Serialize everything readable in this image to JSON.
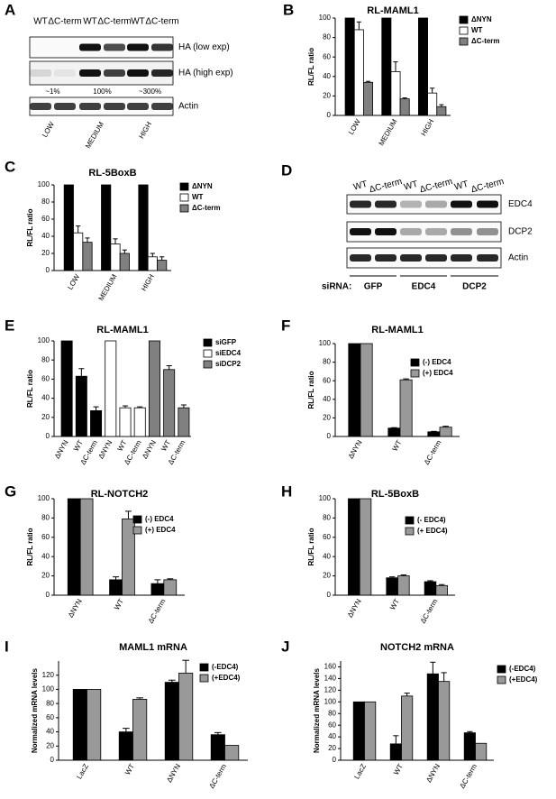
{
  "blots": [
    {
      "panel": "A",
      "lanes": [
        "WT",
        "ΔC-term",
        "WT",
        "ΔC-term",
        "WT",
        "ΔC-term"
      ],
      "rows": [
        "HA (low exp)",
        "HA (high exp)",
        "Actin"
      ],
      "levels": [
        "~1%",
        "100%",
        "~300%"
      ],
      "groups": [
        "LOW",
        "MEDIUM",
        "HIGH"
      ]
    },
    {
      "panel": "D",
      "lanes": [
        "WT",
        "ΔC-term",
        "WT",
        "ΔC-term",
        "WT",
        "ΔC-term"
      ],
      "rows": [
        "EDC4",
        "DCP2",
        "Actin"
      ],
      "sirna_label": "siRNA:",
      "groups": [
        "GFP",
        "EDC4",
        "DCP2"
      ]
    }
  ],
  "chart_data": [
    {
      "panel": "B",
      "type": "bar",
      "title": "RL-MAML1",
      "ylabel": "RL/FL ratio",
      "categories": [
        "LOW",
        "MEDIUM",
        "HIGH"
      ],
      "ylim": [
        0,
        100
      ],
      "yticks": [
        0,
        20,
        40,
        60,
        80,
        100
      ],
      "series": [
        {
          "name": "ΔNYN",
          "color": "#000000",
          "values": [
            100,
            100,
            100
          ]
        },
        {
          "name": "WT",
          "color": "#ffffff",
          "values": [
            88,
            45,
            23
          ],
          "errors": [
            8,
            10,
            5
          ]
        },
        {
          "name": "ΔC-term",
          "color": "#808080",
          "values": [
            34,
            17,
            9
          ],
          "errors": [
            1,
            1,
            2
          ]
        }
      ]
    },
    {
      "panel": "C",
      "type": "bar",
      "title": "RL-5BoxB",
      "ylabel": "RL/FL ratio",
      "categories": [
        "LOW",
        "MEDIUM",
        "HIGH"
      ],
      "ylim": [
        0,
        100
      ],
      "yticks": [
        0,
        20,
        40,
        60,
        80,
        100
      ],
      "series": [
        {
          "name": "ΔNYN",
          "color": "#000000",
          "values": [
            100,
            100,
            100
          ]
        },
        {
          "name": "WT",
          "color": "#ffffff",
          "values": [
            44,
            31,
            16
          ],
          "errors": [
            8,
            6,
            4
          ]
        },
        {
          "name": "ΔC-term",
          "color": "#808080",
          "values": [
            33,
            20,
            12
          ],
          "errors": [
            5,
            4,
            4
          ]
        }
      ]
    },
    {
      "panel": "E",
      "type": "bar",
      "title": "RL-MAML1",
      "ylabel": "RL/FL ratio",
      "categories": [
        "ΔNYN",
        "WT",
        "ΔC-term",
        "ΔNYN",
        "WT",
        "ΔC-term",
        "ΔNYN",
        "WT",
        "ΔC-term"
      ],
      "ylim": [
        0,
        100
      ],
      "yticks": [
        0,
        20,
        40,
        60,
        80,
        100
      ],
      "series": [
        {
          "name": "siGFP",
          "color": "#000000",
          "values": [
            100,
            63,
            27,
            null,
            null,
            null,
            null,
            null,
            null
          ],
          "errors": [
            null,
            8,
            4,
            null,
            null,
            null,
            null,
            null,
            null
          ]
        },
        {
          "name": "siEDC4",
          "color": "#ffffff",
          "values": [
            null,
            null,
            null,
            100,
            30,
            30,
            null,
            null,
            null
          ],
          "errors": [
            null,
            null,
            null,
            null,
            2,
            1,
            null,
            null,
            null
          ]
        },
        {
          "name": "siDCP2",
          "color": "#808080",
          "values": [
            null,
            null,
            null,
            null,
            null,
            null,
            100,
            70,
            30
          ],
          "errors": [
            null,
            null,
            null,
            null,
            null,
            null,
            null,
            4,
            3
          ]
        }
      ]
    },
    {
      "panel": "F",
      "type": "bar",
      "title": "RL-MAML1",
      "ylabel": "RL/FL ratio",
      "categories": [
        "ΔNYN",
        "WT",
        "ΔC-term"
      ],
      "ylim": [
        0,
        100
      ],
      "yticks": [
        0,
        20,
        40,
        60,
        80,
        100
      ],
      "series": [
        {
          "name": "(-) EDC4",
          "color": "#000000",
          "values": [
            100,
            9,
            5
          ],
          "errors": [
            null,
            0.5,
            0.5
          ]
        },
        {
          "name": "(+) EDC4",
          "color": "#999999",
          "values": [
            100,
            61,
            10
          ],
          "errors": [
            null,
            1,
            1
          ]
        }
      ]
    },
    {
      "panel": "G",
      "type": "bar",
      "title": "RL-NOTCH2",
      "ylabel": "RL/FL ratio",
      "categories": [
        "ΔNYN",
        "WT",
        "ΔC-term"
      ],
      "ylim": [
        0,
        100
      ],
      "yticks": [
        0,
        20,
        40,
        60,
        80,
        100
      ],
      "series": [
        {
          "name": "(-) EDC4",
          "color": "#000000",
          "values": [
            100,
            16,
            12
          ],
          "errors": [
            null,
            3,
            4
          ]
        },
        {
          "name": "(+) EDC4",
          "color": "#999999",
          "values": [
            100,
            79,
            16
          ],
          "errors": [
            null,
            8,
            1
          ]
        }
      ]
    },
    {
      "panel": "H",
      "type": "bar",
      "title": "RL-5BoxB",
      "ylabel": "RL/FL ratio",
      "categories": [
        "ΔNYN",
        "WT",
        "ΔC-term"
      ],
      "ylim": [
        0,
        100
      ],
      "yticks": [
        0,
        20,
        40,
        60,
        80,
        100
      ],
      "series": [
        {
          "name": "(- EDC4)",
          "color": "#000000",
          "values": [
            100,
            18,
            14
          ],
          "errors": [
            null,
            1,
            1
          ]
        },
        {
          "name": "(+ EDC4)",
          "color": "#999999",
          "values": [
            100,
            20,
            10
          ],
          "errors": [
            null,
            1,
            1
          ]
        }
      ]
    },
    {
      "panel": "I",
      "type": "bar",
      "title": "MAML1 mRNA",
      "ylabel": "Normalized mRNA levels",
      "categories": [
        "LacZ",
        "WT",
        "ΔNYN",
        "ΔC-term"
      ],
      "ylim": [
        0,
        140
      ],
      "yticks": [
        0,
        20,
        40,
        60,
        80,
        100,
        120
      ],
      "series": [
        {
          "name": "(-EDC4)",
          "color": "#000000",
          "values": [
            100,
            40,
            110,
            36
          ],
          "errors": [
            null,
            5,
            3,
            3
          ]
        },
        {
          "name": "(+EDC4)",
          "color": "#999999",
          "values": [
            100,
            86,
            123,
            21
          ],
          "errors": [
            null,
            2,
            18,
            null
          ]
        }
      ]
    },
    {
      "panel": "J",
      "type": "bar",
      "title": "NOTCH2 mRNA",
      "ylabel": "Normalized mRNA levels",
      "categories": [
        "LacZ",
        "WT",
        "ΔNYN",
        "ΔC-term"
      ],
      "ylim": [
        0,
        170
      ],
      "yticks": [
        0,
        20,
        40,
        60,
        80,
        100,
        120,
        140,
        160
      ],
      "series": [
        {
          "name": "(-EDC4)",
          "color": "#000000",
          "values": [
            100,
            28,
            148,
            47
          ],
          "errors": [
            null,
            14,
            20,
            2
          ]
        },
        {
          "name": "(+EDC4)",
          "color": "#999999",
          "values": [
            100,
            110,
            135,
            29
          ],
          "errors": [
            null,
            5,
            15,
            null
          ]
        }
      ]
    }
  ]
}
